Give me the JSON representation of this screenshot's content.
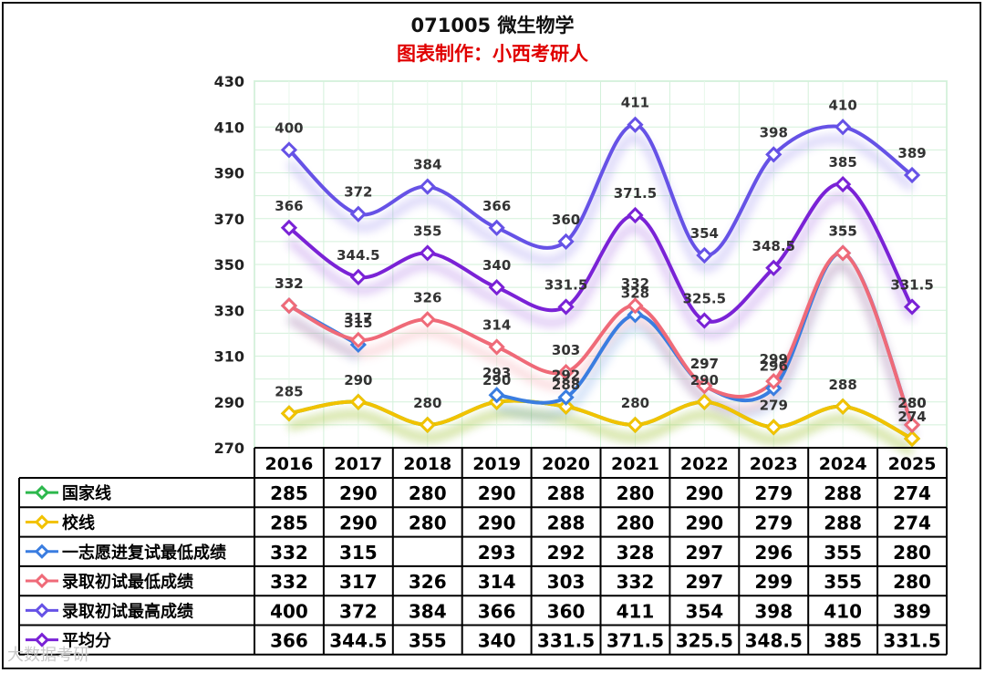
{
  "title": "071005 微生物学",
  "subtitle": "图表制作：小西考研人",
  "watermark": "大数据考研",
  "chart_data": {
    "type": "line",
    "categories": [
      "2016",
      "2017",
      "2018",
      "2019",
      "2020",
      "2021",
      "2022",
      "2023",
      "2024",
      "2025"
    ],
    "ylim": [
      270,
      430
    ],
    "yticks": [
      270,
      290,
      310,
      330,
      350,
      370,
      390,
      410,
      430
    ],
    "grid": true,
    "legend": "data-table-left",
    "series": [
      {
        "name": "国家线",
        "color": "#2db84d",
        "values": [
          285,
          290,
          280,
          290,
          288,
          280,
          290,
          279,
          288,
          274
        ]
      },
      {
        "name": "校线",
        "color": "#f2c200",
        "values": [
          285,
          290,
          280,
          290,
          288,
          280,
          290,
          279,
          288,
          274
        ]
      },
      {
        "name": "一志愿进复试最低成绩",
        "color": "#3a7de0",
        "values": [
          332,
          315,
          null,
          293,
          292,
          328,
          297,
          296,
          355,
          280
        ]
      },
      {
        "name": "录取初试最低成绩",
        "color": "#ef6a78",
        "values": [
          332,
          317,
          326,
          314,
          303,
          332,
          297,
          299,
          355,
          280
        ]
      },
      {
        "name": "录取初试最高成绩",
        "color": "#6652e6",
        "values": [
          400,
          372,
          384,
          366,
          360,
          411,
          354,
          398,
          410,
          389
        ]
      },
      {
        "name": "平均分",
        "color": "#7a22d6",
        "values": [
          366,
          344.5,
          355,
          340,
          331.5,
          371.5,
          325.5,
          348.5,
          385,
          331.5
        ]
      }
    ]
  }
}
